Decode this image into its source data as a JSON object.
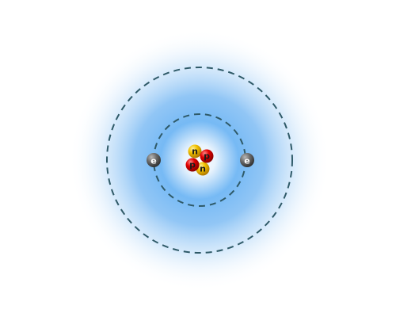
{
  "diagram": {
    "type": "atom-model",
    "colors": {
      "background": "#ffffff",
      "cloud": "#3b9cf0",
      "orbit": "#2f5a68",
      "neutron": "#f2c200",
      "proton": "#e00000",
      "electron": "#666666"
    },
    "nucleus": {
      "particles": [
        {
          "kind": "neutron",
          "label": "n"
        },
        {
          "kind": "proton",
          "label": "p"
        },
        {
          "kind": "proton",
          "label": "p"
        },
        {
          "kind": "neutron",
          "label": "n"
        }
      ]
    },
    "electrons": [
      {
        "label": "e"
      },
      {
        "label": "e"
      }
    ],
    "orbits": [
      {
        "name": "inner-orbit"
      },
      {
        "name": "outer-orbit"
      }
    ]
  }
}
